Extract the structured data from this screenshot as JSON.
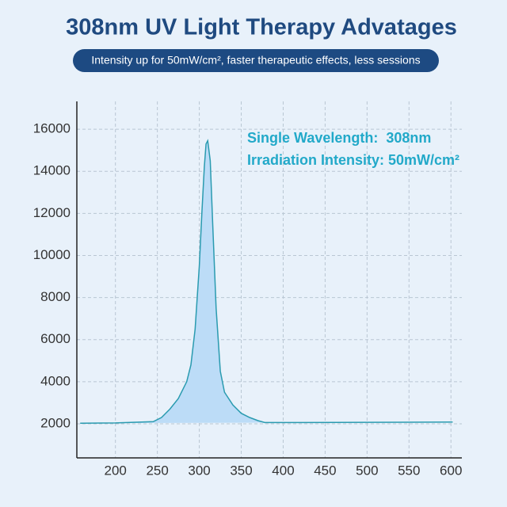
{
  "chart_data": {
    "type": "area",
    "title": "308nm UV Light Therapy Advatages",
    "subtitle": "Intensity up for 50mW/cm², faster therapeutic effects, less sessions",
    "annotations": [
      "Single Wavelength:  308nm",
      "Irradiation Intensity: 50mW/cm²"
    ],
    "x": [
      158,
      200,
      245,
      255,
      265,
      275,
      285,
      290,
      295,
      300,
      303,
      306,
      308,
      310,
      313,
      316,
      320,
      325,
      330,
      340,
      350,
      360,
      370,
      378,
      400,
      500,
      602
    ],
    "values": [
      2030,
      2040,
      2100,
      2300,
      2700,
      3200,
      4000,
      4800,
      6500,
      9500,
      12000,
      14200,
      15300,
      15450,
      14500,
      11500,
      7500,
      4500,
      3500,
      2900,
      2500,
      2300,
      2150,
      2060,
      2060,
      2070,
      2080
    ],
    "color": "#2a9bb0",
    "fill": "#bcdcf7",
    "xlim": [
      154,
      613
    ],
    "ylim": [
      380,
      17320
    ],
    "xticks": [
      200,
      250,
      300,
      350,
      400,
      450,
      500,
      550,
      600
    ],
    "yticks": [
      2000,
      4000,
      6000,
      8000,
      10000,
      12000,
      14000,
      16000
    ],
    "grid": true
  }
}
